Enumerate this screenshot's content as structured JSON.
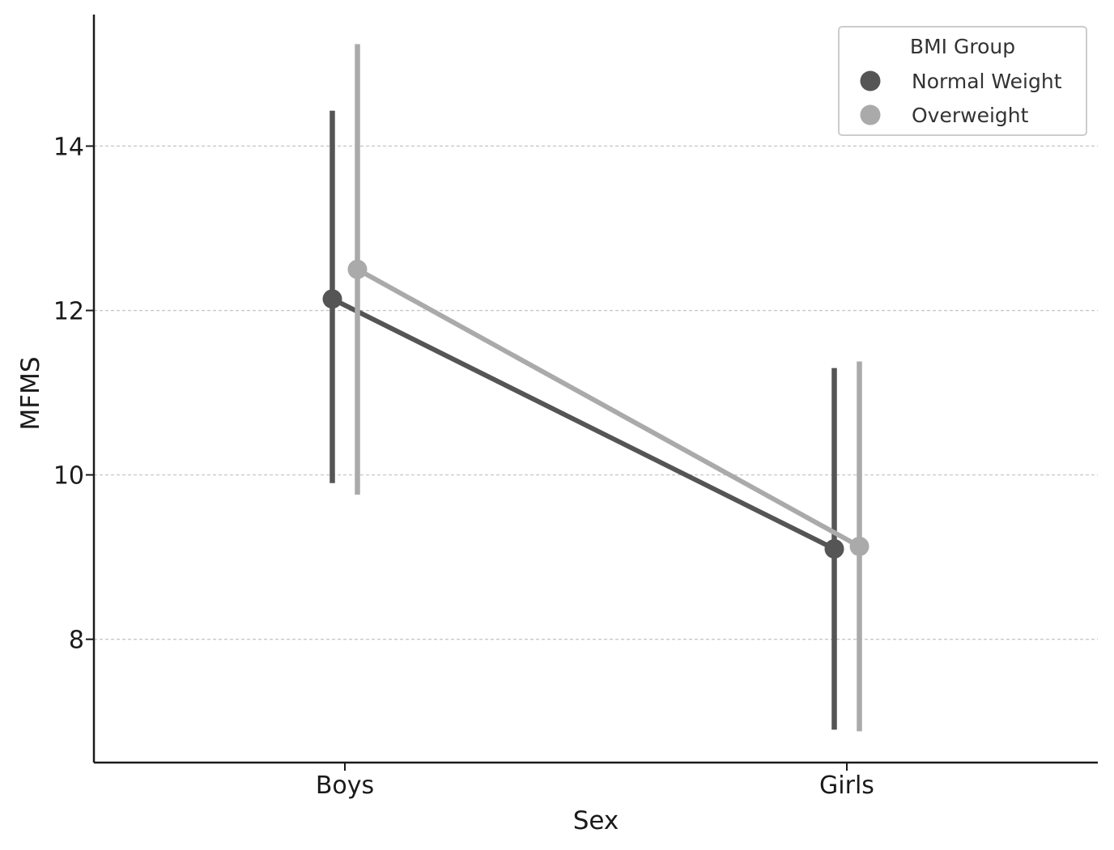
{
  "chart_data": {
    "type": "line",
    "subtype": "point-plot with error bars",
    "xlabel": "Sex",
    "ylabel": "MFMS",
    "categories": [
      "Boys",
      "Girls"
    ],
    "ylim": [
      6.5,
      15.6
    ],
    "yticks": [
      8,
      10,
      12,
      14
    ],
    "ytick_labels": [
      "8",
      "10",
      "12",
      "14"
    ],
    "grid": "horizontal dashed",
    "legend": {
      "title": "BMI Group",
      "position": "top-right"
    },
    "series": [
      {
        "name": "Normal Weight",
        "color": "#555555",
        "values": [
          12.14,
          9.1
        ],
        "error_low": [
          9.9,
          6.9
        ],
        "error_high": [
          14.43,
          11.3
        ]
      },
      {
        "name": "Overweight",
        "color": "#aaaaaa",
        "values": [
          12.5,
          9.13
        ],
        "error_low": [
          9.76,
          6.88
        ],
        "error_high": [
          15.24,
          11.38
        ]
      }
    ]
  }
}
